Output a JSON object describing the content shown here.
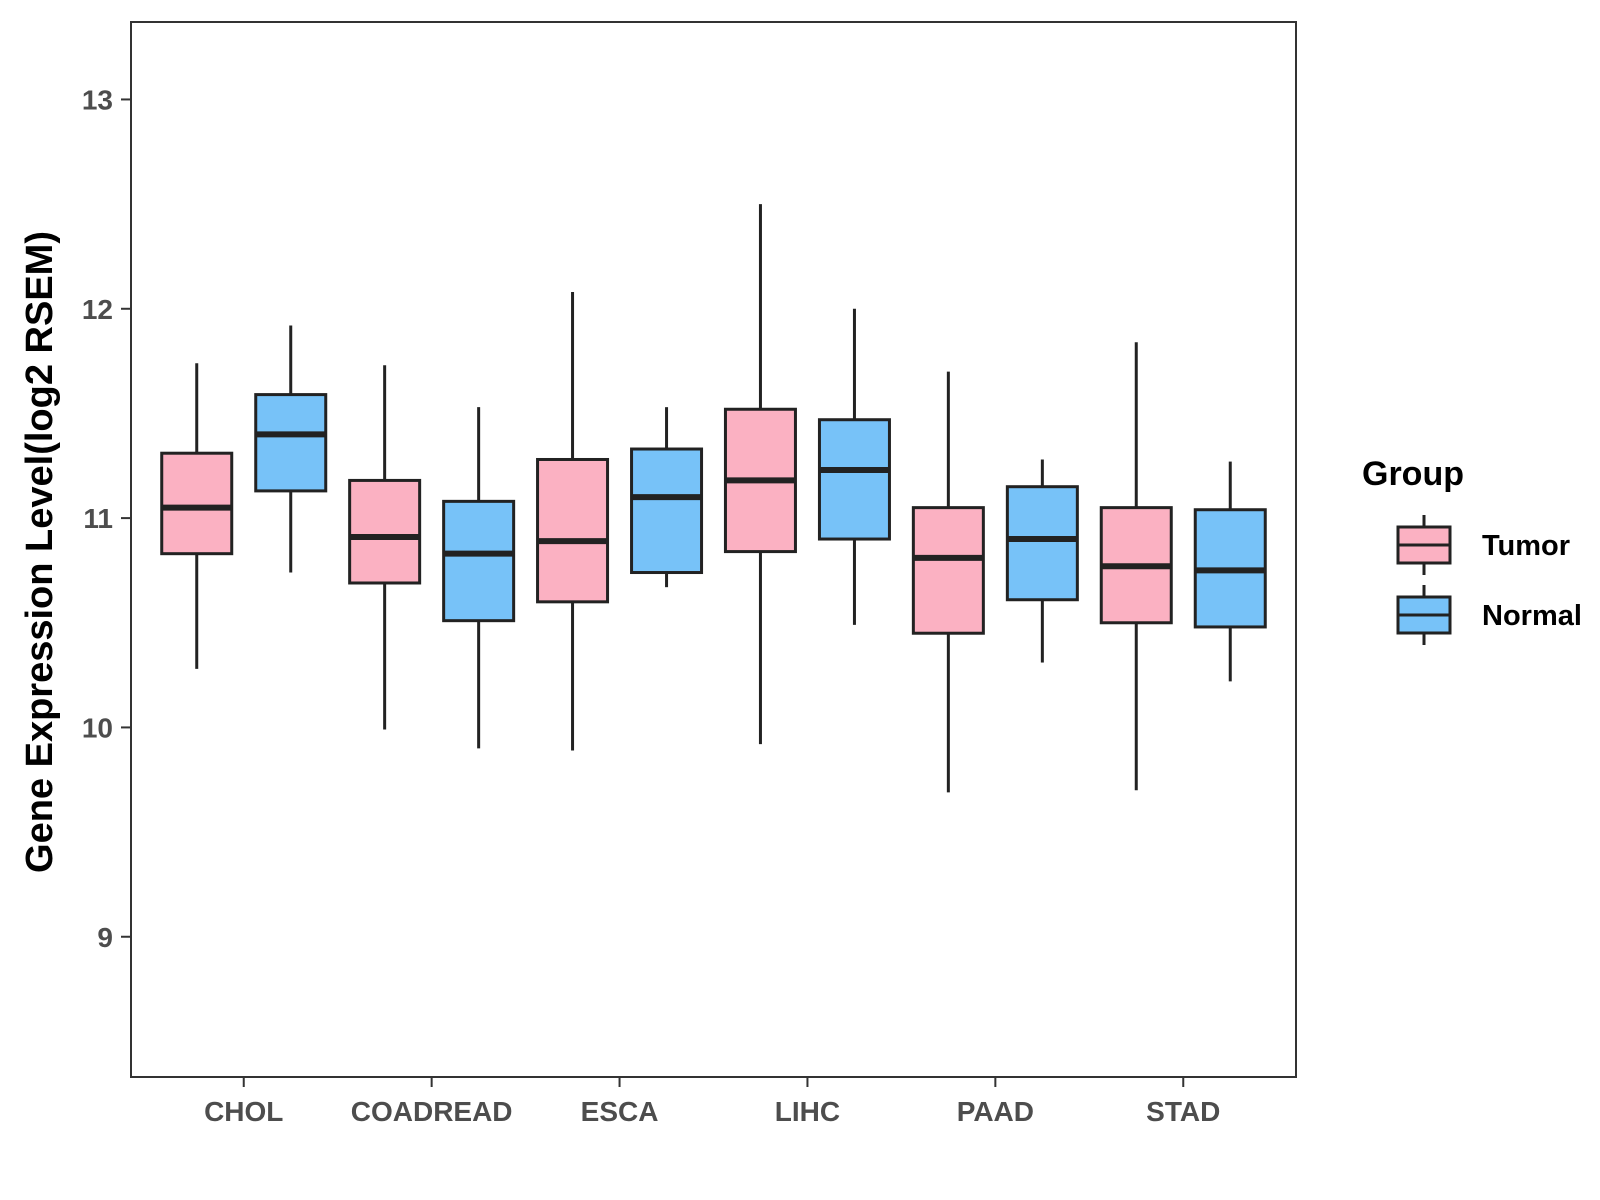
{
  "chart_data": {
    "type": "boxplot",
    "title": "",
    "xlabel": "",
    "ylabel": "Gene Expression Level(log2 RSEM)",
    "ylim": [
      8.33,
      13.37
    ],
    "yticks": [
      9,
      10,
      11,
      12,
      13
    ],
    "ytick_labels": [
      "9",
      "10",
      "11",
      "12",
      "13"
    ],
    "categories": [
      "CHOL",
      "COADREAD",
      "ESCA",
      "LIHC",
      "PAAD",
      "STAD"
    ],
    "legend": {
      "title": "Group",
      "position": "right",
      "items": [
        "Tumor",
        "Normal"
      ]
    },
    "colors": {
      "Tumor": "#FBB1C2",
      "Normal": "#77C2F8",
      "outline": "#222222",
      "panel_border": "#333333"
    },
    "series": [
      {
        "name": "Tumor",
        "boxes": [
          {
            "category": "CHOL",
            "min": 10.28,
            "q1": 10.83,
            "median": 11.05,
            "q3": 11.31,
            "max": 11.74
          },
          {
            "category": "COADREAD",
            "min": 9.99,
            "q1": 10.69,
            "median": 10.91,
            "q3": 11.18,
            "max": 11.73
          },
          {
            "category": "ESCA",
            "min": 9.89,
            "q1": 10.6,
            "median": 10.89,
            "q3": 11.28,
            "max": 12.08
          },
          {
            "category": "LIHC",
            "min": 9.92,
            "q1": 10.84,
            "median": 11.18,
            "q3": 11.52,
            "max": 12.5
          },
          {
            "category": "PAAD",
            "min": 9.69,
            "q1": 10.45,
            "median": 10.81,
            "q3": 11.05,
            "max": 11.7
          },
          {
            "category": "STAD",
            "min": 9.7,
            "q1": 10.5,
            "median": 10.77,
            "q3": 11.05,
            "max": 11.84
          }
        ]
      },
      {
        "name": "Normal",
        "boxes": [
          {
            "category": "CHOL",
            "min": 10.74,
            "q1": 11.13,
            "median": 11.4,
            "q3": 11.59,
            "max": 11.92
          },
          {
            "category": "COADREAD",
            "min": 9.9,
            "q1": 10.51,
            "median": 10.83,
            "q3": 11.08,
            "max": 11.53
          },
          {
            "category": "ESCA",
            "min": 10.67,
            "q1": 10.74,
            "median": 11.1,
            "q3": 11.33,
            "max": 11.53
          },
          {
            "category": "LIHC",
            "min": 10.49,
            "q1": 10.9,
            "median": 11.23,
            "q3": 11.47,
            "max": 12.0
          },
          {
            "category": "PAAD",
            "min": 10.31,
            "q1": 10.61,
            "median": 10.9,
            "q3": 11.15,
            "max": 11.28
          },
          {
            "category": "STAD",
            "min": 10.22,
            "q1": 10.48,
            "median": 10.75,
            "q3": 11.04,
            "max": 11.27
          }
        ]
      }
    ]
  }
}
